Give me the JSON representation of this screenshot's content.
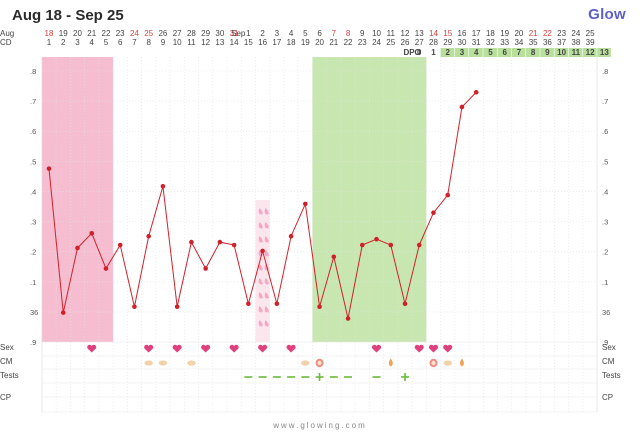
{
  "header": {
    "title": "Aug 18 - Sep 25",
    "logo": "Glow"
  },
  "row_labels": {
    "date": "Aug",
    "date_sep": "Sep",
    "cd": "CD",
    "dpo": "DPO",
    "sex": "Sex",
    "cm": "CM",
    "tests": "Tests",
    "cp": "CP"
  },
  "dates": [
    "18",
    "19",
    "20",
    "21",
    "22",
    "23",
    "24",
    "25",
    "26",
    "27",
    "28",
    "29",
    "30",
    "31",
    "1",
    "2",
    "3",
    "4",
    "5",
    "6",
    "7",
    "8",
    "9",
    "10",
    "11",
    "12",
    "13",
    "14",
    "15",
    "16",
    "17",
    "18",
    "19",
    "20",
    "21",
    "22",
    "23",
    "24",
    "25"
  ],
  "date_highlight": [
    true,
    false,
    false,
    false,
    false,
    false,
    true,
    true,
    false,
    false,
    false,
    false,
    false,
    true,
    false,
    false,
    false,
    false,
    false,
    false,
    true,
    true,
    false,
    false,
    false,
    false,
    false,
    true,
    true,
    false,
    false,
    false,
    false,
    false,
    true,
    true,
    false,
    false,
    false
  ],
  "cd": [
    "1",
    "2",
    "3",
    "4",
    "5",
    "6",
    "7",
    "8",
    "9",
    "10",
    "11",
    "12",
    "13",
    "14",
    "15",
    "16",
    "17",
    "18",
    "19",
    "20",
    "21",
    "22",
    "23",
    "24",
    "25",
    "26",
    "27",
    "28",
    "29",
    "30",
    "31",
    "32",
    "33",
    "34",
    "35",
    "36",
    "37",
    "38",
    "39"
  ],
  "dpo": [
    "0",
    "1",
    "2",
    "3",
    "4",
    "5",
    "6",
    "7",
    "8",
    "9",
    "10",
    "11",
    "12",
    "13"
  ],
  "y_left_labels": [
    ".8",
    ".7",
    ".6",
    ".5",
    ".4",
    ".3",
    ".2",
    ".1",
    "36",
    ".9"
  ],
  "y_right_labels": [
    ".8",
    ".7",
    ".6",
    ".5",
    ".4",
    ".3",
    ".2",
    ".1",
    "36",
    ".9"
  ],
  "chart_data": {
    "type": "line",
    "x": [
      1,
      2,
      3,
      4,
      5,
      6,
      7,
      8,
      9,
      10,
      11,
      12,
      13,
      14,
      15,
      16,
      17,
      18,
      19,
      20,
      21,
      22,
      23,
      24,
      25,
      26,
      27,
      28,
      29,
      30,
      31,
      32
    ],
    "y": [
      97.44,
      96.95,
      97.17,
      97.22,
      97.1,
      97.18,
      96.97,
      97.21,
      97.38,
      96.97,
      97.19,
      97.1,
      97.19,
      97.18,
      96.98,
      97.16,
      96.98,
      97.21,
      97.32,
      96.97,
      97.14,
      96.93,
      97.18,
      97.2,
      97.18,
      96.98,
      97.18,
      97.29,
      97.35,
      97.65,
      97.7,
      null
    ],
    "series": [
      {
        "name": "",
        "color": "#d0212b"
      }
    ],
    "ylim": [
      96.85,
      97.82
    ],
    "period_days": [
      1,
      2,
      3,
      4,
      5
    ],
    "fertile_window": [
      20,
      21,
      22,
      23,
      24,
      25,
      26,
      27
    ],
    "spotting_days": [
      16
    ],
    "colors": {
      "period": "#f6bcd0",
      "fertile": "#c8e6b0",
      "line": "#d0212b",
      "heart": "#e0407e",
      "test_neg": "#6bbb3a",
      "footer_text": "#888888"
    }
  },
  "sex_days": [
    4,
    8,
    10,
    12,
    14,
    16,
    18,
    24,
    27,
    28,
    29
  ],
  "cm_marks": [
    {
      "day": 8,
      "icon": "creamy-icon"
    },
    {
      "day": 9,
      "icon": "creamy-icon"
    },
    {
      "day": 11,
      "icon": "creamy-icon"
    },
    {
      "day": 19,
      "icon": "creamy-icon"
    },
    {
      "day": 20,
      "icon": "egg-white-icon"
    },
    {
      "day": 25,
      "icon": "watery-icon"
    },
    {
      "day": 28,
      "icon": "egg-white-icon"
    },
    {
      "day": 29,
      "icon": "creamy-icon"
    },
    {
      "day": 30,
      "icon": "watery-icon"
    }
  ],
  "tests": [
    {
      "day": 15,
      "result": "negative"
    },
    {
      "day": 16,
      "result": "negative"
    },
    {
      "day": 17,
      "result": "negative"
    },
    {
      "day": 18,
      "result": "negative"
    },
    {
      "day": 19,
      "result": "negative"
    },
    {
      "day": 20,
      "result": "positive"
    },
    {
      "day": 21,
      "result": "negative"
    },
    {
      "day": 22,
      "result": "negative"
    },
    {
      "day": 24,
      "result": "negative"
    },
    {
      "day": 26,
      "result": "positive"
    }
  ],
  "footer": "www.glowing.com"
}
